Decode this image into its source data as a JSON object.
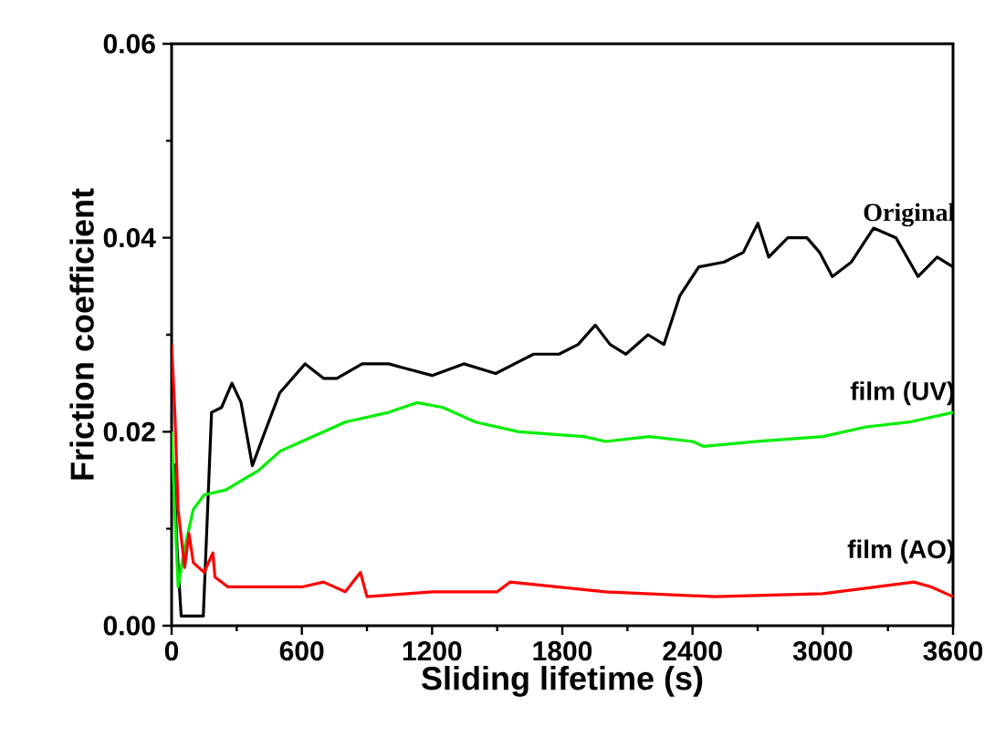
{
  "chart_data": {
    "type": "line",
    "xlabel": "Sliding lifetime (s)",
    "ylabel": "Friction coefficient",
    "xlim": [
      0,
      3600
    ],
    "ylim": [
      0,
      0.06
    ],
    "xticks": [
      0,
      600,
      1200,
      1800,
      2400,
      3000,
      3600
    ],
    "yticks": [
      {
        "value": 0,
        "label": "0.00"
      },
      {
        "value": 0.02,
        "label": "0.02"
      },
      {
        "value": 0.04,
        "label": "0.04"
      },
      {
        "value": 0.06,
        "label": "0.06"
      }
    ],
    "grid": false,
    "legend": false,
    "marker": "none",
    "line_style": "solid",
    "series": [
      {
        "name": "Original",
        "color": "#000000",
        "x": [
          10,
          25,
          44,
          100,
          146,
          184,
          230,
          278,
          320,
          372,
          430,
          498,
          615,
          700,
          761,
          878,
          1000,
          1083,
          1200,
          1346,
          1493,
          1580,
          1668,
          1785,
          1873,
          1952,
          2020,
          2093,
          2195,
          2268,
          2341,
          2429,
          2546,
          2634,
          2701,
          2751,
          2839,
          2927,
          2985,
          3044,
          3132,
          3234,
          3337,
          3439,
          3527,
          3600
        ],
        "values": [
          0.0167,
          0.008,
          0.001,
          0.001,
          0.001,
          0.022,
          0.0225,
          0.025,
          0.023,
          0.0165,
          0.02,
          0.024,
          0.027,
          0.0255,
          0.0255,
          0.027,
          0.027,
          0.0265,
          0.0258,
          0.027,
          0.026,
          0.027,
          0.028,
          0.028,
          0.029,
          0.031,
          0.029,
          0.028,
          0.03,
          0.029,
          0.034,
          0.037,
          0.0375,
          0.0385,
          0.0415,
          0.038,
          0.04,
          0.04,
          0.0385,
          0.036,
          0.0375,
          0.041,
          0.04,
          0.036,
          0.038,
          0.037
        ]
      },
      {
        "name": "film (UV)",
        "color": "#00ee00",
        "x": [
          0,
          15,
          30,
          60,
          100,
          150,
          250,
          400,
          500,
          600,
          800,
          1000,
          1130,
          1250,
          1400,
          1600,
          1900,
          2000,
          2200,
          2400,
          2450,
          2700,
          3000,
          3200,
          3400,
          3600
        ],
        "values": [
          0.02,
          0.0115,
          0.004,
          0.008,
          0.012,
          0.0135,
          0.014,
          0.016,
          0.018,
          0.019,
          0.021,
          0.022,
          0.023,
          0.0225,
          0.021,
          0.02,
          0.0195,
          0.019,
          0.0195,
          0.019,
          0.0185,
          0.019,
          0.0195,
          0.0205,
          0.021,
          0.022
        ]
      },
      {
        "name": "film (AO)",
        "color": "#ff0000",
        "x": [
          0,
          15,
          30,
          60,
          80,
          100,
          150,
          190,
          200,
          260,
          600,
          700,
          800,
          870,
          900,
          1200,
          1500,
          1560,
          2000,
          2500,
          3000,
          3420,
          3500,
          3600
        ],
        "values": [
          0.029,
          0.022,
          0.012,
          0.006,
          0.0095,
          0.0065,
          0.0055,
          0.0075,
          0.005,
          0.004,
          0.004,
          0.0045,
          0.0035,
          0.0055,
          0.003,
          0.0035,
          0.0035,
          0.0045,
          0.0035,
          0.003,
          0.0033,
          0.0045,
          0.004,
          0.003
        ]
      }
    ]
  }
}
